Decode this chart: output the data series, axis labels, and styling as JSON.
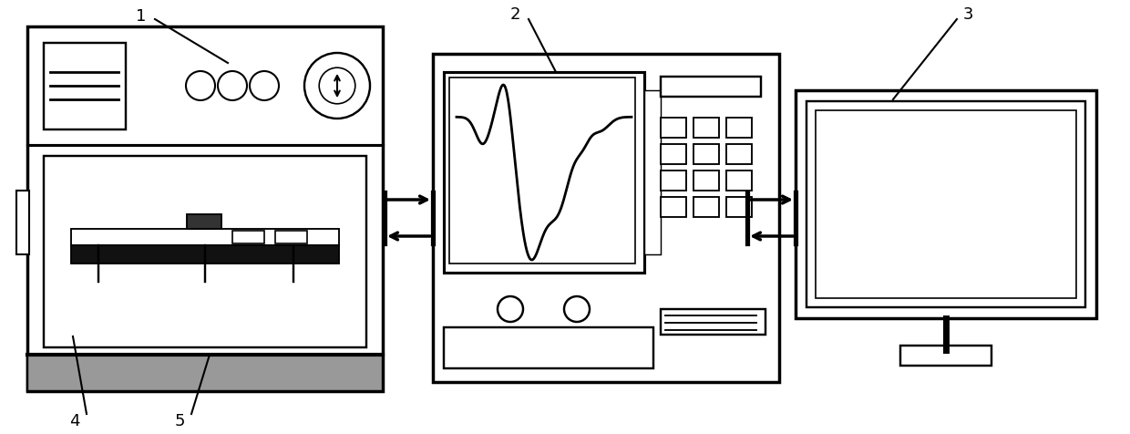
{
  "bg_color": "#ffffff",
  "line_color": "#000000",
  "lw": 1.5,
  "lw_thick": 2.5,
  "figw": 12.4,
  "figh": 4.77,
  "dpi": 100
}
